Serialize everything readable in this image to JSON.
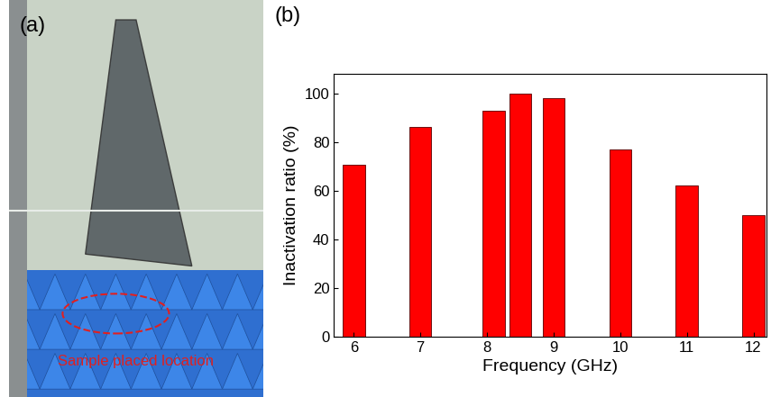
{
  "chart_data": {
    "type": "bar",
    "panel_label": "(b)",
    "x_label": "Frequency (GHz)",
    "y_label": "Inactivation ratio (%)",
    "x": [
      6,
      7,
      8.1,
      8.5,
      9,
      10,
      11,
      12
    ],
    "values": [
      70.5,
      86,
      93,
      100,
      98,
      77,
      62,
      50
    ],
    "color": "#ff0000",
    "xlim": [
      5.7,
      12.2
    ],
    "xticks": [
      6,
      7,
      8,
      9,
      10,
      11,
      12
    ],
    "ylim": [
      0,
      108
    ],
    "yticks": [
      0,
      20,
      40,
      60,
      80,
      100
    ],
    "grid": false
  },
  "photo": {
    "panel_label": "(a)",
    "annotation": "Sample placed location"
  }
}
